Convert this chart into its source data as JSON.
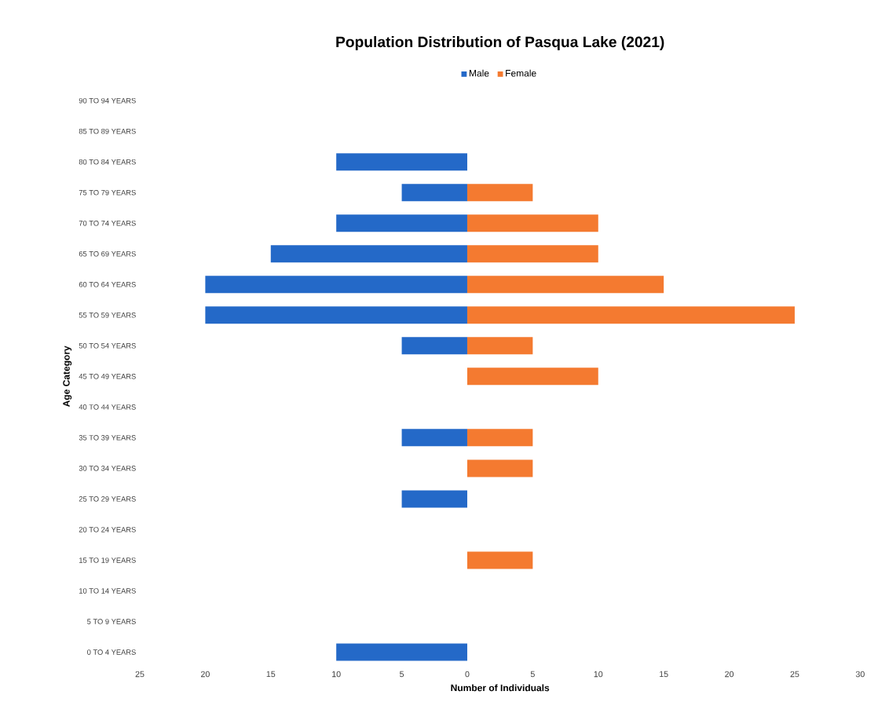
{
  "chart_data": {
    "type": "bar",
    "orientation": "horizontal",
    "title": "Population Distribution of Pasqua Lake (2021)",
    "xlabel": "Number of Individuals",
    "ylabel": "Age Category",
    "categories": [
      "90 TO 94 YEARS",
      "85 TO 89 YEARS",
      "80 TO 84 YEARS",
      "75 TO 79 YEARS",
      "70 TO 74 YEARS",
      "65 TO 69 YEARS",
      "60 TO 64 YEARS",
      "55 TO 59 YEARS",
      "50 TO 54 YEARS",
      "45 TO 49 YEARS",
      "40 TO 44 YEARS",
      "35 TO 39 YEARS",
      "30 TO 34 YEARS",
      "25 TO 29 YEARS",
      "20 TO 24 YEARS",
      "15 TO 19 YEARS",
      "10 TO 14 YEARS",
      "5 TO 9 YEARS",
      "0 TO 4 YEARS"
    ],
    "series": [
      {
        "name": "Male",
        "color": "#2469c8",
        "values": [
          null,
          null,
          -10,
          -5,
          -10,
          -15,
          -20,
          -20,
          -5,
          null,
          null,
          -5,
          null,
          -5,
          null,
          null,
          null,
          null,
          -10
        ]
      },
      {
        "name": "Female",
        "color": "#f47a30",
        "values": [
          null,
          null,
          null,
          5,
          10,
          10,
          15,
          25,
          5,
          10,
          null,
          5,
          5,
          null,
          null,
          5,
          null,
          null,
          null
        ]
      }
    ],
    "xlim": [
      -25,
      30
    ],
    "xticks": [
      {
        "value": -25,
        "label": "25"
      },
      {
        "value": -20,
        "label": "20"
      },
      {
        "value": -15,
        "label": "15"
      },
      {
        "value": -10,
        "label": "10"
      },
      {
        "value": -5,
        "label": "5"
      },
      0,
      5,
      10,
      15,
      20,
      25,
      30
    ],
    "legend": "top",
    "grid": false
  }
}
